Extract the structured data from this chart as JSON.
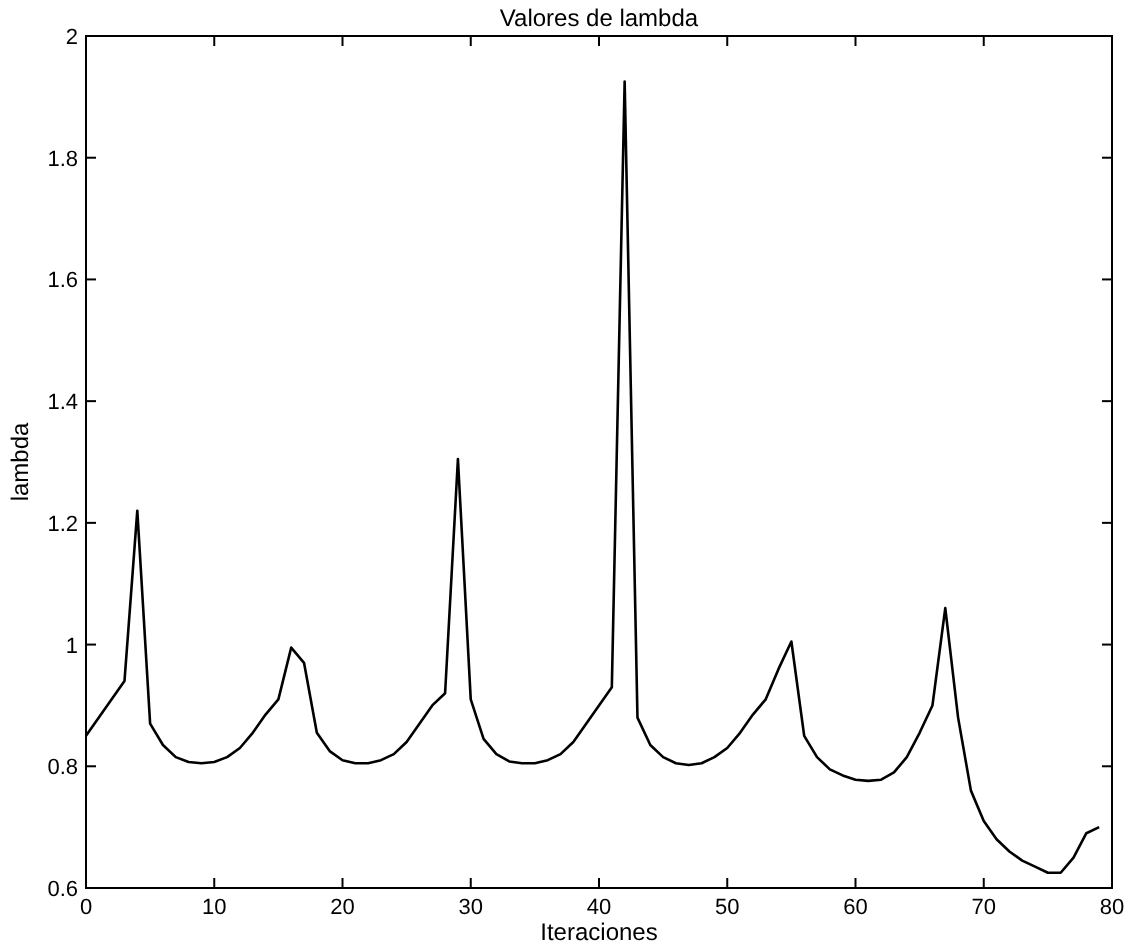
{
  "chart_data": {
    "type": "line",
    "title": "Valores de lambda",
    "xlabel": "Iteraciones",
    "ylabel": "lambda",
    "x": [
      0,
      1,
      2,
      3,
      4,
      5,
      6,
      7,
      8,
      9,
      10,
      11,
      12,
      13,
      14,
      15,
      16,
      17,
      18,
      19,
      20,
      21,
      22,
      23,
      24,
      25,
      26,
      27,
      28,
      29,
      30,
      31,
      32,
      33,
      34,
      35,
      36,
      37,
      38,
      39,
      40,
      41,
      42,
      43,
      44,
      45,
      46,
      47,
      48,
      49,
      50,
      51,
      52,
      53,
      54,
      55,
      56,
      57,
      58,
      59,
      60,
      61,
      62,
      63,
      64,
      65,
      66,
      67,
      68,
      69,
      70,
      71,
      72,
      73,
      74,
      75,
      76,
      77,
      78,
      79
    ],
    "series": [
      {
        "color": "#000000",
        "values": [
          0.85,
          0.88,
          0.91,
          0.94,
          1.22,
          0.87,
          0.835,
          0.815,
          0.807,
          0.805,
          0.807,
          0.815,
          0.83,
          0.855,
          0.885,
          0.91,
          0.995,
          0.97,
          0.855,
          0.825,
          0.81,
          0.805,
          0.805,
          0.81,
          0.82,
          0.84,
          0.87,
          0.9,
          0.92,
          1.305,
          0.91,
          0.845,
          0.82,
          0.808,
          0.805,
          0.805,
          0.81,
          0.82,
          0.84,
          0.87,
          0.9,
          0.93,
          1.925,
          0.88,
          0.835,
          0.815,
          0.805,
          0.802,
          0.805,
          0.815,
          0.83,
          0.855,
          0.885,
          0.91,
          0.96,
          1.005,
          0.85,
          0.815,
          0.795,
          0.785,
          0.778,
          0.776,
          0.778,
          0.79,
          0.815,
          0.855,
          0.9,
          1.06,
          0.88,
          0.76,
          0.71,
          0.68,
          0.66,
          0.645,
          0.635,
          0.625,
          0.625,
          0.65,
          0.69,
          0.7
        ]
      }
    ],
    "xlim": [
      0,
      80
    ],
    "ylim": [
      0.6,
      2
    ],
    "xticks": [
      0,
      10,
      20,
      30,
      40,
      50,
      60,
      70,
      80
    ],
    "yticks": [
      {
        "value": 0.6,
        "label": "0.6"
      },
      {
        "value": 0.8,
        "label": "0.8"
      },
      {
        "value": 1,
        "label": "1"
      },
      {
        "value": 1.2,
        "label": "1.2"
      },
      {
        "value": 1.4,
        "label": "1.4"
      },
      {
        "value": 1.6,
        "label": "1.6"
      },
      {
        "value": 1.8,
        "label": "1.8"
      },
      {
        "value": 2,
        "label": "2"
      }
    ],
    "grid": false,
    "marker": "none",
    "line_style": "solid"
  }
}
